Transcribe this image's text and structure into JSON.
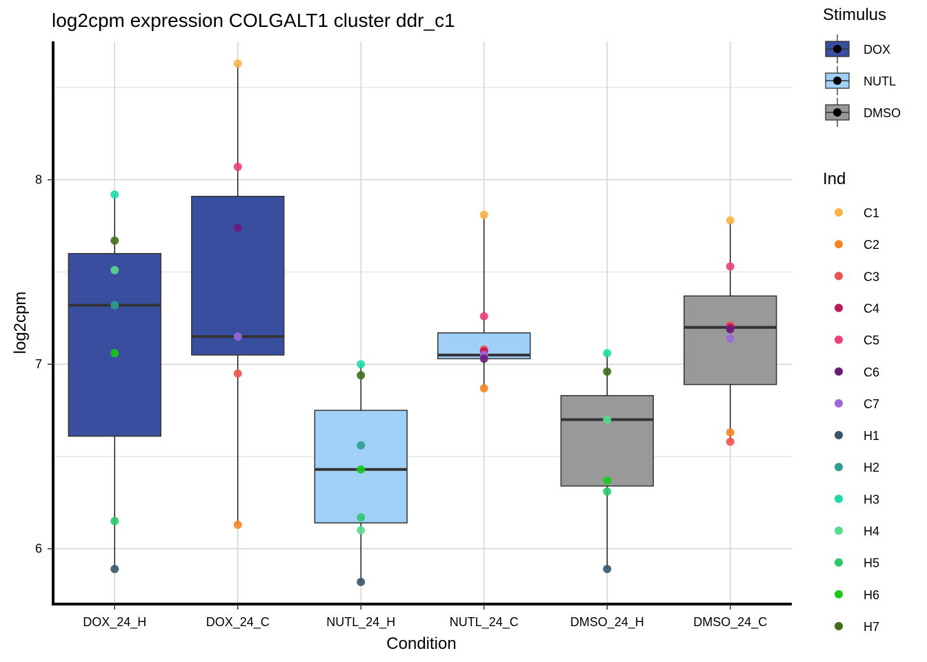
{
  "chart_data": {
    "type": "box",
    "title": "log2cpm expression COLGALT1 cluster ddr_c1",
    "xlabel": "Condition",
    "ylabel": "log2cpm",
    "ylim": [
      5.7,
      8.75
    ],
    "yticks": [
      6,
      7,
      8
    ],
    "yminor": [
      6.5,
      7.5,
      8.5
    ],
    "grid": true,
    "categories": [
      "DOX_24_H",
      "DOX_24_C",
      "NUTL_24_H",
      "NUTL_24_C",
      "DMSO_24_H",
      "DMSO_24_C"
    ],
    "stimulus_of_category": [
      "DOX",
      "DOX",
      "NUTL",
      "NUTL",
      "DMSO",
      "DMSO"
    ],
    "boxes": [
      {
        "condition": "DOX_24_H",
        "whisker_low": 5.89,
        "q1": 6.61,
        "median": 7.32,
        "q3": 7.6,
        "whisker_high": 7.92
      },
      {
        "condition": "DOX_24_C",
        "whisker_low": 6.13,
        "q1": 7.05,
        "median": 7.15,
        "q3": 7.91,
        "whisker_high": 8.63
      },
      {
        "condition": "NUTL_24_H",
        "whisker_low": 5.82,
        "q1": 6.14,
        "median": 6.43,
        "q3": 6.75,
        "whisker_high": 7.0
      },
      {
        "condition": "NUTL_24_C",
        "whisker_low": 6.87,
        "q1": 7.03,
        "median": 7.05,
        "q3": 7.17,
        "whisker_high": 7.81
      },
      {
        "condition": "DMSO_24_H",
        "whisker_low": 5.89,
        "q1": 6.34,
        "median": 6.7,
        "q3": 6.83,
        "whisker_high": 7.06
      },
      {
        "condition": "DMSO_24_C",
        "whisker_low": 6.58,
        "q1": 6.89,
        "median": 7.2,
        "q3": 7.37,
        "whisker_high": 7.78
      }
    ],
    "points": [
      {
        "condition": "DOX_24_H",
        "ind": "H3",
        "value": 7.92
      },
      {
        "condition": "DOX_24_H",
        "ind": "H7",
        "value": 7.67
      },
      {
        "condition": "DOX_24_H",
        "ind": "H4",
        "value": 7.51
      },
      {
        "condition": "DOX_24_H",
        "ind": "H2",
        "value": 7.32
      },
      {
        "condition": "DOX_24_H",
        "ind": "H6",
        "value": 7.06
      },
      {
        "condition": "DOX_24_H",
        "ind": "H5",
        "value": 6.15
      },
      {
        "condition": "DOX_24_H",
        "ind": "H1",
        "value": 5.89
      },
      {
        "condition": "DOX_24_C",
        "ind": "C1",
        "value": 8.63
      },
      {
        "condition": "DOX_24_C",
        "ind": "C5",
        "value": 8.07
      },
      {
        "condition": "DOX_24_C",
        "ind": "C6",
        "value": 7.74
      },
      {
        "condition": "DOX_24_C",
        "ind": "C7",
        "value": 7.15
      },
      {
        "condition": "DOX_24_C",
        "ind": "C3",
        "value": 6.95
      },
      {
        "condition": "DOX_24_C",
        "ind": "C2",
        "value": 6.13
      },
      {
        "condition": "NUTL_24_H",
        "ind": "H3",
        "value": 7.0
      },
      {
        "condition": "NUTL_24_H",
        "ind": "H7",
        "value": 6.94
      },
      {
        "condition": "NUTL_24_H",
        "ind": "H2",
        "value": 6.56
      },
      {
        "condition": "NUTL_24_H",
        "ind": "H6",
        "value": 6.43
      },
      {
        "condition": "NUTL_24_H",
        "ind": "H5",
        "value": 6.17
      },
      {
        "condition": "NUTL_24_H",
        "ind": "H4",
        "value": 6.1
      },
      {
        "condition": "NUTL_24_H",
        "ind": "H1",
        "value": 5.82
      },
      {
        "condition": "NUTL_24_C",
        "ind": "C1",
        "value": 7.81
      },
      {
        "condition": "NUTL_24_C",
        "ind": "C5",
        "value": 7.26
      },
      {
        "condition": "NUTL_24_C",
        "ind": "C3",
        "value": 7.08
      },
      {
        "condition": "NUTL_24_C",
        "ind": "C4",
        "value": 7.07
      },
      {
        "condition": "NUTL_24_C",
        "ind": "C7",
        "value": 7.05
      },
      {
        "condition": "NUTL_24_C",
        "ind": "C6",
        "value": 7.03
      },
      {
        "condition": "NUTL_24_C",
        "ind": "C2",
        "value": 6.87
      },
      {
        "condition": "DMSO_24_H",
        "ind": "H3",
        "value": 7.06
      },
      {
        "condition": "DMSO_24_H",
        "ind": "H7",
        "value": 6.96
      },
      {
        "condition": "DMSO_24_H",
        "ind": "H4",
        "value": 6.7
      },
      {
        "condition": "DMSO_24_H",
        "ind": "H6",
        "value": 6.37
      },
      {
        "condition": "DMSO_24_H",
        "ind": "H5",
        "value": 6.31
      },
      {
        "condition": "DMSO_24_H",
        "ind": "H1",
        "value": 5.89
      },
      {
        "condition": "DMSO_24_C",
        "ind": "C1",
        "value": 7.78
      },
      {
        "condition": "DMSO_24_C",
        "ind": "C5",
        "value": 7.53
      },
      {
        "condition": "DMSO_24_C",
        "ind": "C3",
        "value": 7.21
      },
      {
        "condition": "DMSO_24_C",
        "ind": "C4",
        "value": 7.2
      },
      {
        "condition": "DMSO_24_C",
        "ind": "C6",
        "value": 7.19
      },
      {
        "condition": "DMSO_24_C",
        "ind": "C7",
        "value": 7.14
      },
      {
        "condition": "DMSO_24_C",
        "ind": "C2",
        "value": 6.63
      },
      {
        "condition": "DMSO_24_C",
        "ind": "C3",
        "value": 6.58
      }
    ],
    "legend_stimulus": {
      "title": "Stimulus",
      "entries": [
        {
          "label": "DOX",
          "color": "#3A4EA0"
        },
        {
          "label": "NUTL",
          "color": "#A0CFF7"
        },
        {
          "label": "DMSO",
          "color": "#999999"
        }
      ]
    },
    "legend_ind": {
      "title": "Ind",
      "entries": [
        {
          "label": "C1",
          "color": "#FDB147"
        },
        {
          "label": "C2",
          "color": "#F58424"
        },
        {
          "label": "C3",
          "color": "#EF5350"
        },
        {
          "label": "C4",
          "color": "#C2185B"
        },
        {
          "label": "C5",
          "color": "#EC407A"
        },
        {
          "label": "C6",
          "color": "#6A1B7A"
        },
        {
          "label": "C7",
          "color": "#9B6AD8"
        },
        {
          "label": "H1",
          "color": "#37546A"
        },
        {
          "label": "H2",
          "color": "#2E9E94"
        },
        {
          "label": "H3",
          "color": "#1DDAA8"
        },
        {
          "label": "H4",
          "color": "#5ADB8E"
        },
        {
          "label": "H5",
          "color": "#2CC86A"
        },
        {
          "label": "H6",
          "color": "#1BC81B"
        },
        {
          "label": "H7",
          "color": "#3F6E1E"
        }
      ]
    }
  }
}
